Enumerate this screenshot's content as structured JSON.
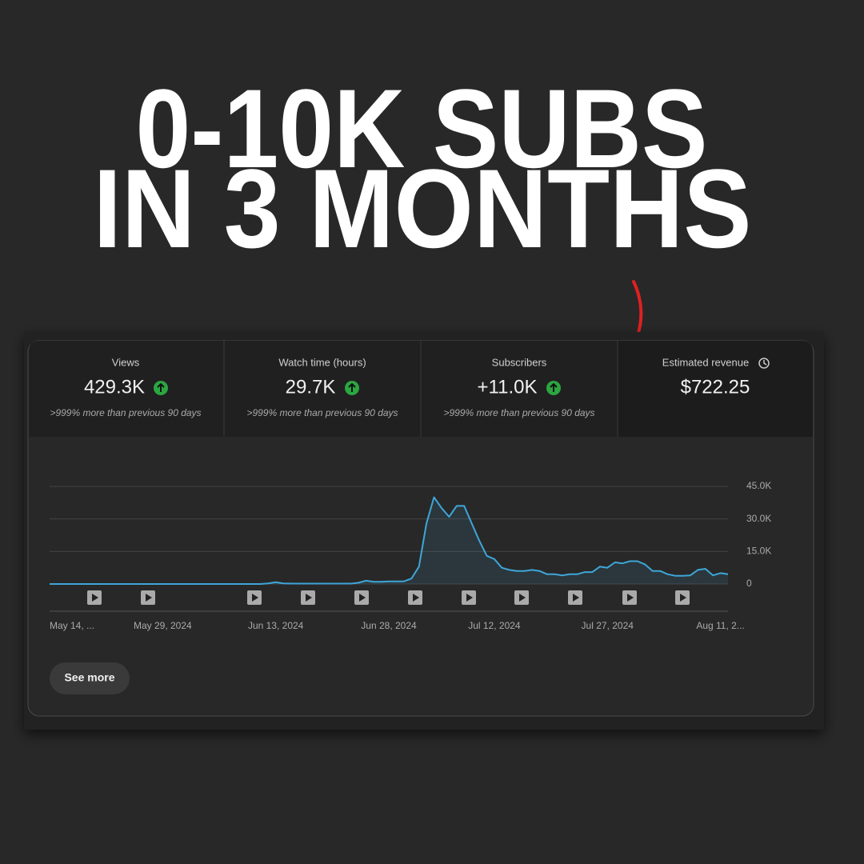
{
  "headline": [
    "0-10K SUBS",
    "IN 3 MONTHS"
  ],
  "cards": [
    {
      "title": "Views",
      "value": "429.3K",
      "change": ">999% more than previous 90 days"
    },
    {
      "title": "Watch time (hours)",
      "value": "29.7K",
      "change": ">999% more than previous 90 days"
    },
    {
      "title": "Subscribers",
      "value": "+11.0K",
      "change": ">999% more than previous 90 days"
    },
    {
      "title": "Estimated revenue",
      "value": "$722.25"
    }
  ],
  "button": "See more",
  "chart_data": {
    "type": "line",
    "color": "#3ea6d8",
    "grid": true,
    "categories": [
      "May 14, ...",
      null,
      null,
      null,
      null,
      null,
      null,
      null,
      null,
      null,
      null,
      null,
      null,
      null,
      null,
      "May 29, 2024",
      null,
      null,
      null,
      null,
      null,
      null,
      null,
      null,
      null,
      null,
      null,
      null,
      null,
      null,
      "Jun 13, 2024",
      null,
      null,
      null,
      null,
      null,
      null,
      null,
      null,
      null,
      null,
      null,
      null,
      null,
      null,
      "Jun 28, 2024",
      null,
      null,
      null,
      null,
      null,
      null,
      null,
      null,
      null,
      null,
      null,
      null,
      null,
      "Jul 12, 2024",
      null,
      null,
      null,
      null,
      null,
      null,
      null,
      null,
      null,
      null,
      null,
      null,
      null,
      null,
      "Jul 27, 2024",
      null,
      null,
      null,
      null,
      null,
      null,
      null,
      null,
      null,
      null,
      null,
      null,
      null,
      null,
      "Aug 11, 2...",
      null
    ],
    "values": [
      0,
      0,
      0,
      0,
      0,
      0,
      0,
      0,
      0,
      0,
      0,
      0,
      0,
      0,
      0,
      0,
      0,
      0,
      0,
      0,
      0,
      0,
      0,
      0,
      0,
      0,
      0,
      0,
      0,
      300,
      800,
      300,
      200,
      200,
      200,
      200,
      200,
      200,
      200,
      200,
      200,
      600,
      1500,
      1000,
      1000,
      1200,
      1200,
      1200,
      2500,
      8000,
      28000,
      40000,
      35000,
      31000,
      36000,
      36000,
      28000,
      20000,
      13000,
      11500,
      7500,
      6500,
      6000,
      6000,
      6500,
      6000,
      4500,
      4500,
      4000,
      4500,
      4500,
      5500,
      5500,
      8000,
      7500,
      10000,
      9500,
      10500,
      10500,
      9000,
      6000,
      6000,
      4500,
      3800,
      3800,
      4000,
      6500,
      7000,
      4000,
      5000,
      4500
    ],
    "ylim": [
      0,
      45000
    ],
    "yticks": [
      0,
      {
        "value": 15000,
        "label": "15.0K"
      },
      {
        "value": 30000,
        "label": "30.0K"
      },
      {
        "value": 45000,
        "label": "45.0K"
      }
    ]
  }
}
